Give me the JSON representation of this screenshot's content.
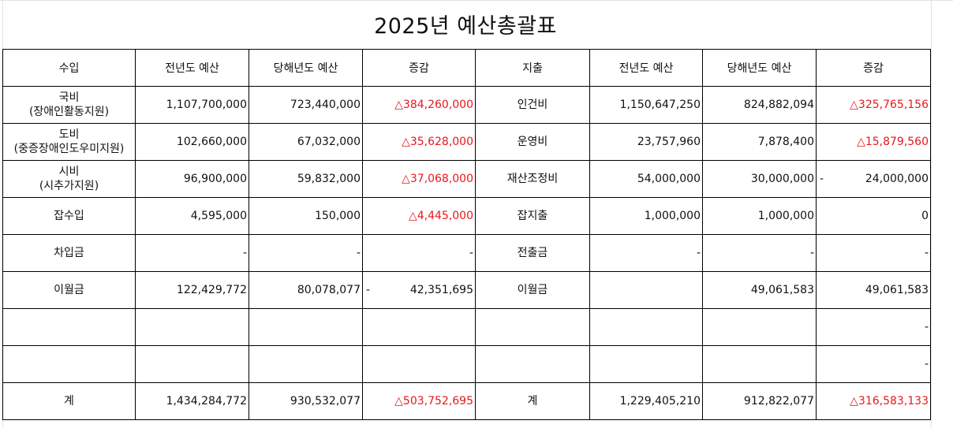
{
  "title": "2025년 예산총괄표",
  "headers": [
    "수입",
    "전년도 예산",
    "당해년도 예산",
    "증감",
    "지출",
    "전년도 예산",
    "당해년도 예산",
    "증감"
  ],
  "rows": [
    {
      "rev_label": "국비",
      "rev_sub": "(장애인활동지원)",
      "rev_prev": "1,107,700,000",
      "rev_curr": "723,440,000",
      "rev_diff": "△384,260,000",
      "rev_diff_neg": true,
      "rev_diff_prefix": "",
      "exp_label": "인건비",
      "exp_prev": "1,150,647,250",
      "exp_curr": "824,882,094",
      "exp_diff": "△325,765,156",
      "exp_diff_neg": true,
      "exp_diff_prefix": ""
    },
    {
      "rev_label": "도비",
      "rev_sub": "(중증장애인도우미지원)",
      "rev_prev": "102,660,000",
      "rev_curr": "67,032,000",
      "rev_diff": "△35,628,000",
      "rev_diff_neg": true,
      "rev_diff_prefix": "",
      "exp_label": "운영비",
      "exp_prev": "23,757,960",
      "exp_curr": "7,878,400",
      "exp_diff": "△15,879,560",
      "exp_diff_neg": true,
      "exp_diff_prefix": ""
    },
    {
      "rev_label": "시비",
      "rev_sub": "(시추가지원)",
      "rev_prev": "96,900,000",
      "rev_curr": "59,832,000",
      "rev_diff": "△37,068,000",
      "rev_diff_neg": true,
      "rev_diff_prefix": "",
      "exp_label": "재산조정비",
      "exp_prev": "54,000,000",
      "exp_curr": "30,000,000",
      "exp_diff": "24,000,000 ",
      "exp_diff_neg": false,
      "exp_diff_prefix": "-"
    },
    {
      "rev_label": "잡수입",
      "rev_sub": "",
      "rev_prev": "4,595,000",
      "rev_curr": "150,000",
      "rev_diff": "△4,445,000",
      "rev_diff_neg": true,
      "rev_diff_prefix": "",
      "exp_label": "잡지출",
      "exp_prev": "1,000,000",
      "exp_curr": "1,000,000",
      "exp_diff": "0",
      "exp_diff_neg": false,
      "exp_diff_prefix": ""
    },
    {
      "rev_label": "차입금",
      "rev_sub": "",
      "rev_prev": "- ",
      "rev_curr": "- ",
      "rev_diff": "- ",
      "rev_diff_neg": false,
      "rev_diff_prefix": "",
      "exp_label": "전출금",
      "exp_prev": "- ",
      "exp_curr": "- ",
      "exp_diff": "- ",
      "exp_diff_neg": false,
      "exp_diff_prefix": ""
    },
    {
      "rev_label": "이월금",
      "rev_sub": "",
      "rev_prev": "122,429,772",
      "rev_curr": "80,078,077",
      "rev_diff": "42,351,695 ",
      "rev_diff_neg": false,
      "rev_diff_prefix": "-",
      "exp_label": "이월금",
      "exp_prev": "",
      "exp_curr": "49,061,583",
      "exp_diff": "49,061,583",
      "exp_diff_neg": false,
      "exp_diff_prefix": ""
    },
    {
      "rev_label": "",
      "rev_sub": "",
      "rev_prev": "",
      "rev_curr": "",
      "rev_diff": "",
      "rev_diff_neg": false,
      "rev_diff_prefix": "",
      "exp_label": "",
      "exp_prev": "",
      "exp_curr": "",
      "exp_diff": "- ",
      "exp_diff_neg": false,
      "exp_diff_prefix": ""
    },
    {
      "rev_label": "",
      "rev_sub": "",
      "rev_prev": "",
      "rev_curr": "",
      "rev_diff": "",
      "rev_diff_neg": false,
      "rev_diff_prefix": "",
      "exp_label": "",
      "exp_prev": "",
      "exp_curr": "",
      "exp_diff": "- ",
      "exp_diff_neg": false,
      "exp_diff_prefix": ""
    },
    {
      "rev_label": "계",
      "rev_sub": "",
      "rev_prev": "1,434,284,772",
      "rev_curr": "930,532,077",
      "rev_diff": "△503,752,695",
      "rev_diff_neg": true,
      "rev_diff_prefix": "",
      "exp_label": "계",
      "exp_prev": "1,229,405,210",
      "exp_curr": "912,822,077",
      "exp_diff": "△316,583,133",
      "exp_diff_neg": true,
      "exp_diff_prefix": ""
    }
  ],
  "colors": {
    "negative": "#e8161b",
    "border": "#000000",
    "gridline": "#e3e3e3"
  }
}
